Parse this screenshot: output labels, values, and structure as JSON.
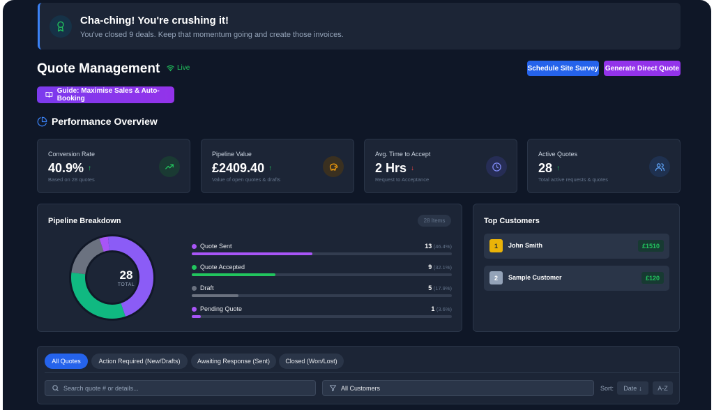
{
  "banner": {
    "title": "Cha-ching! You're crushing it!",
    "subtitle": "You've closed 9 deals. Keep that momentum going and create those invoices.",
    "icon": "award-icon"
  },
  "header": {
    "title": "Quote Management",
    "live_label": "Live",
    "schedule_button": "Schedule Site Survey",
    "generate_button": "Generate Direct Quote",
    "guide_button": "Guide: Maximise Sales & Auto-Booking"
  },
  "performance": {
    "title": "Performance Overview",
    "cards": [
      {
        "label": "Conversion Rate",
        "value": "40.9%",
        "trend": "up",
        "sub": "Based on 28 quotes",
        "icon": "trending-up-icon",
        "color": "#22c55e"
      },
      {
        "label": "Pipeline Value",
        "value": "£2409.40",
        "trend": "up",
        "sub": "Value of open quotes & drafts",
        "icon": "piggy-bank-icon",
        "color": "#f59e0b"
      },
      {
        "label": "Avg. Time to Accept",
        "value": "2 Hrs",
        "trend": "down",
        "sub": "Request to Acceptance",
        "icon": "clock-icon",
        "color": "#6366f1"
      },
      {
        "label": "Active Quotes",
        "value": "28",
        "trend": "up",
        "sub": "Total active requests & quotes",
        "icon": "users-icon",
        "color": "#3b82f6"
      }
    ]
  },
  "pipeline": {
    "title": "Pipeline Breakdown",
    "items_badge": "28 Items",
    "total": "28",
    "total_caption": "TOTAL",
    "rows": [
      {
        "name": "Quote Sent",
        "count": "13",
        "pct": "(46.4%)",
        "fraction": 0.464,
        "color": "#a855f7"
      },
      {
        "name": "Quote Accepted",
        "count": "9",
        "pct": "(32.1%)",
        "fraction": 0.321,
        "color": "#22c55e"
      },
      {
        "name": "Draft",
        "count": "5",
        "pct": "(17.9%)",
        "fraction": 0.179,
        "color": "#6b7280"
      },
      {
        "name": "Pending Quote",
        "count": "1",
        "pct": "(3.6%)",
        "fraction": 0.036,
        "color": "#a855f7"
      }
    ],
    "donut_colors": [
      "#8b5cf6",
      "#10b981",
      "#6b7280",
      "#a855f7"
    ]
  },
  "top_customers": {
    "title": "Top Customers",
    "items": [
      {
        "rank": "1",
        "name": "John Smith",
        "amount": "£1510",
        "rank_color": "#eab308"
      },
      {
        "rank": "2",
        "name": "Sample Customer",
        "amount": "£120",
        "rank_color": "#94a3b8"
      }
    ]
  },
  "quotes": {
    "tabs": [
      "All Quotes",
      "Action Required (New/Drafts)",
      "Awaiting Response (Sent)",
      "Closed (Won/Lost)"
    ],
    "search_placeholder": "Search quote # or details...",
    "customer_filter": "All Customers",
    "sort_label": "Sort:",
    "sort_date": "Date",
    "sort_az": "A-Z"
  }
}
